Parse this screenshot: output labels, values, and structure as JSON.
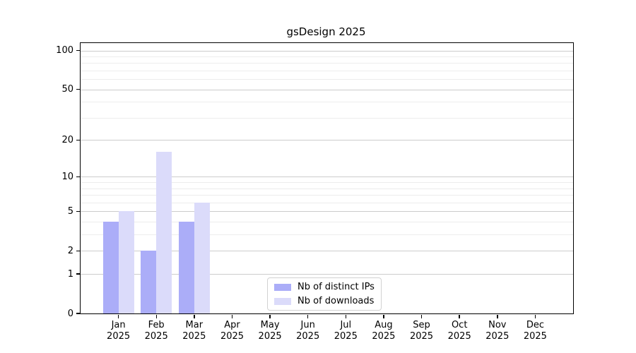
{
  "chart_data": {
    "type": "bar",
    "title": "gsDesign 2025",
    "categories": [
      {
        "month": "Jan",
        "year": "2025"
      },
      {
        "month": "Feb",
        "year": "2025"
      },
      {
        "month": "Mar",
        "year": "2025"
      },
      {
        "month": "Apr",
        "year": "2025"
      },
      {
        "month": "May",
        "year": "2025"
      },
      {
        "month": "Jun",
        "year": "2025"
      },
      {
        "month": "Jul",
        "year": "2025"
      },
      {
        "month": "Aug",
        "year": "2025"
      },
      {
        "month": "Sep",
        "year": "2025"
      },
      {
        "month": "Oct",
        "year": "2025"
      },
      {
        "month": "Nov",
        "year": "2025"
      },
      {
        "month": "Dec",
        "year": "2025"
      }
    ],
    "series": [
      {
        "name": "Nb of distinct IPs",
        "color": "#abadf8",
        "values": [
          4,
          2,
          4,
          0,
          0,
          0,
          0,
          0,
          0,
          0,
          0,
          0
        ]
      },
      {
        "name": "Nb of downloads",
        "color": "#dbdbfa",
        "values": [
          5,
          16,
          6,
          0,
          0,
          0,
          0,
          0,
          0,
          0,
          0,
          0
        ]
      }
    ],
    "y_axis": {
      "scale": "log1p",
      "major_ticks": [
        0,
        1,
        2,
        5,
        10,
        20,
        50,
        100
      ],
      "minor_gridlines": [
        3,
        4,
        6,
        7,
        8,
        9,
        30,
        40,
        60,
        70,
        80,
        90
      ],
      "y_max": 114
    },
    "xlabel": "",
    "ylabel": "",
    "grid": true,
    "legend": {
      "position": "lower center"
    },
    "colors": {
      "major_grid": "#cccccc",
      "minor_grid": "#ededed",
      "spine": "#000000",
      "background": "#ffffff"
    }
  }
}
